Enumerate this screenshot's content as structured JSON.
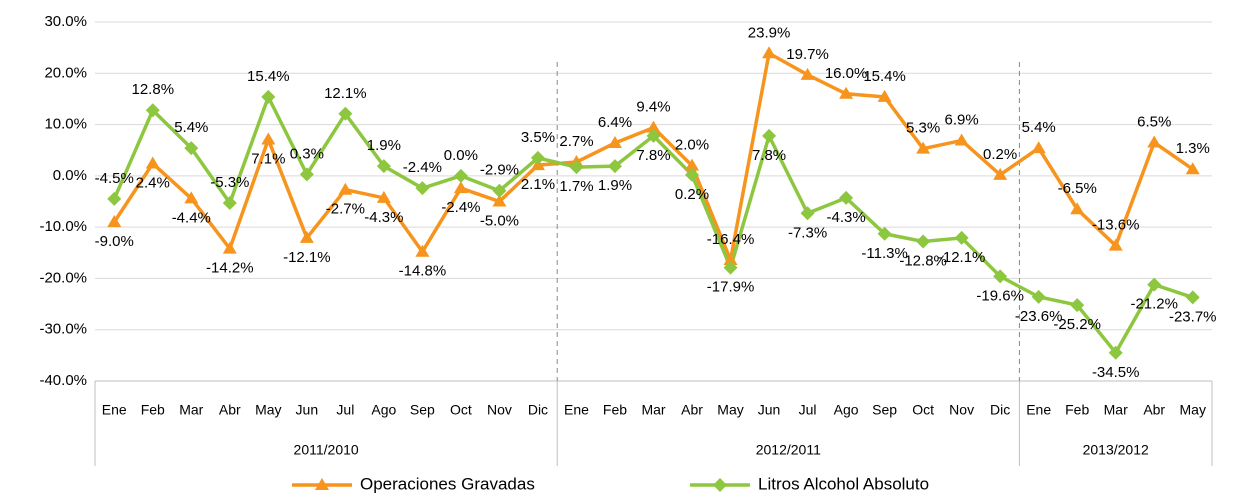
{
  "chart_data": {
    "type": "line",
    "categories": [
      "Ene",
      "Feb",
      "Mar",
      "Abr",
      "May",
      "Jun",
      "Jul",
      "Ago",
      "Sep",
      "Oct",
      "Nov",
      "Dic",
      "Ene",
      "Feb",
      "Mar",
      "Abr",
      "May",
      "Jun",
      "Jul",
      "Ago",
      "Sep",
      "Oct",
      "Nov",
      "Dic",
      "Ene",
      "Feb",
      "Mar",
      "Abr",
      "May"
    ],
    "category_groups": [
      "2011/2010",
      "2012/2011",
      "2013/2012"
    ],
    "ylim": [
      -40,
      30
    ],
    "yticks": [
      {
        "value": 30,
        "label": "30.0%"
      },
      {
        "value": 20,
        "label": "20.0%"
      },
      {
        "value": 10,
        "label": "10.0%"
      },
      {
        "value": 0,
        "label": "0.0%"
      },
      {
        "value": -10,
        "label": "-10.0%"
      },
      {
        "value": -20,
        "label": "-20.0%"
      },
      {
        "value": -30,
        "label": "-30.0%"
      },
      {
        "value": -40,
        "label": "-40.0%"
      }
    ],
    "grid": true,
    "legend": "bottom",
    "series": [
      {
        "name": "Operaciones Gravadas",
        "color": "#f7941d",
        "marker": "triangle",
        "values": [
          -9.0,
          2.4,
          -4.4,
          -14.2,
          7.1,
          -12.1,
          -2.7,
          -4.3,
          -14.8,
          -2.4,
          -5.0,
          2.1,
          2.7,
          6.4,
          9.4,
          2.0,
          -16.4,
          23.9,
          19.7,
          16.0,
          15.4,
          5.3,
          6.9,
          0.2,
          5.4,
          -6.5,
          -13.6,
          6.5,
          1.3
        ],
        "value_labels": [
          "-9.0%",
          "2.4%",
          "-4.4%",
          "-14.2%",
          "7.1%",
          "-12.1%",
          "-2.7%",
          "-4.3%",
          "-14.8%",
          "-2.4%",
          "-5.0%",
          "2.1%",
          "2.7%",
          "6.4%",
          "9.4%",
          "2.0%",
          "-16.4%",
          "23.9%",
          "19.7%",
          "16.0%",
          "15.4%",
          "5.3%",
          "6.9%",
          "0.2%",
          "5.4%",
          "-6.5%",
          "-13.6%",
          "6.5%",
          "1.3%"
        ]
      },
      {
        "name": "Litros Alcohol Absoluto",
        "color": "#8dc63f",
        "marker": "diamond",
        "values": [
          -4.5,
          12.8,
          5.4,
          -5.3,
          15.4,
          0.3,
          12.1,
          1.9,
          -2.4,
          0.0,
          -2.9,
          3.5,
          1.7,
          1.9,
          7.8,
          0.2,
          -17.9,
          7.8,
          -7.3,
          -4.3,
          -11.3,
          -12.8,
          -12.1,
          -19.6,
          -23.6,
          -25.2,
          -34.5,
          -21.2,
          -23.7
        ],
        "value_labels": [
          "-4.5%",
          "12.8%",
          "5.4%",
          "-5.3%",
          "15.4%",
          "0.3%",
          "12.1%",
          "1.9%",
          "-2.4%",
          "0.0%",
          "-2.9%",
          "3.5%",
          "1.7%",
          "1.9%",
          "7.8%",
          "0.2%",
          "-17.9%",
          "7.8%",
          "-7.3%",
          "-4.3%",
          "-11.3%",
          "-12.8%",
          "-12.1%",
          "-19.6%",
          "-23.6%",
          "-25.2%",
          "-34.5%",
          "-21.2%",
          "-23.7%"
        ]
      }
    ]
  }
}
